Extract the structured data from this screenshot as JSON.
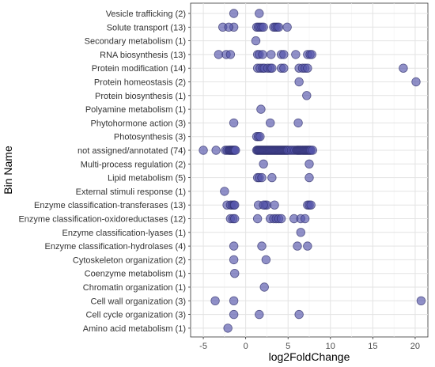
{
  "chart_data": {
    "type": "scatter",
    "title": "",
    "xlabel": "log2FoldChange",
    "ylabel": "Bin Name",
    "xlim": [
      -6.5,
      21.5
    ],
    "x_ticks": [
      -5,
      0,
      5,
      10,
      15,
      20
    ],
    "grid": true,
    "point_color": "#5555aa",
    "point_stroke": "#2b2b66",
    "point_opacity": 0.65,
    "categories": [
      "Vesicle trafficking (2)",
      "Solute transport (13)",
      "Secondary metabolism (1)",
      "RNA biosynthesis (13)",
      "Protein modification (14)",
      "Protein homeostasis (2)",
      "Protein biosynthesis (1)",
      "Polyamine metabolism (1)",
      "Phytohormone action (3)",
      "Photosynthesis (3)",
      "not assigned/annotated (74)",
      "Multi-process regulation (2)",
      "Lipid metabolism (5)",
      "External stimuli response (1)",
      "Enzyme classification-transferases (13)",
      "Enzyme classification-oxidoreductases (12)",
      "Enzyme classification-lyases (1)",
      "Enzyme classification-hydrolases (4)",
      "Cytoskeleton organization (2)",
      "Coenzyme metabolism (1)",
      "Chromatin organization (1)",
      "Cell wall organization (3)",
      "Cell cycle organization (3)",
      "Amino acid metabolism (1)"
    ],
    "points": {
      "Vesicle trafficking (2)": [
        -1.4,
        1.6
      ],
      "Solute transport (13)": [
        -2.7,
        -1.4,
        1.3,
        1.5,
        1.7,
        1.9,
        2.1,
        3.3,
        3.5,
        3.7,
        3.9,
        4.9,
        -2.0
      ],
      "Secondary metabolism (1)": [
        1.2
      ],
      "RNA biosynthesis (13)": [
        -3.2,
        -2.3,
        -1.8,
        1.4,
        1.6,
        2.0,
        3.0,
        4.2,
        4.5,
        5.9,
        7.3,
        7.6,
        7.8
      ],
      "Protein modification (14)": [
        1.4,
        1.7,
        2.0,
        2.2,
        2.6,
        2.9,
        3.1,
        4.2,
        4.5,
        6.3,
        6.7,
        7.0,
        7.3,
        18.6
      ],
      "Protein homeostasis (2)": [
        6.3,
        20.1
      ],
      "Protein biosynthesis (1)": [
        7.2
      ],
      "Polyamine metabolism (1)": [
        1.8
      ],
      "Phytohormone action (3)": [
        -1.4,
        2.9,
        6.2
      ],
      "Photosynthesis (3)": [
        1.3,
        1.5,
        1.7
      ],
      "not assigned/annotated (74)": [
        -5.0,
        -3.5,
        -2.4,
        -2.2,
        -2.0,
        -1.9,
        -1.8,
        -1.7,
        -1.6,
        -1.5,
        -1.4,
        -1.3,
        -1.2,
        1.3,
        1.4,
        1.5,
        1.6,
        1.7,
        1.8,
        1.9,
        2.0,
        2.1,
        2.2,
        2.3,
        2.4,
        2.5,
        2.6,
        2.7,
        2.8,
        2.9,
        3.0,
        3.1,
        3.2,
        3.3,
        3.4,
        3.5,
        3.6,
        3.7,
        3.8,
        3.9,
        4.0,
        4.1,
        4.2,
        4.3,
        4.4,
        4.5,
        4.6,
        4.7,
        4.8,
        4.9,
        5.0,
        5.2,
        5.4,
        5.6,
        5.8,
        6.0,
        6.1,
        6.2,
        6.3,
        6.4,
        6.5,
        6.6,
        6.7,
        6.8,
        6.9,
        7.0,
        7.1,
        7.2,
        7.3,
        7.4,
        7.5,
        7.6,
        7.7,
        7.9
      ],
      "Multi-process regulation (2)": [
        2.1,
        7.5
      ],
      "Lipid metabolism (5)": [
        1.4,
        1.6,
        1.9,
        3.1,
        7.5
      ],
      "External stimuli response (1)": [
        -2.5
      ],
      "Enzyme classification-transferases (13)": [
        -2.2,
        -1.8,
        -1.6,
        -1.4,
        1.5,
        2.3,
        2.5,
        3.4,
        7.3,
        7.5,
        7.7,
        2.1,
        -1.3
      ],
      "Enzyme classification-oxidoreductases (12)": [
        -1.8,
        -1.5,
        -1.3,
        1.4,
        2.9,
        3.3,
        3.6,
        3.9,
        4.2,
        5.7,
        6.5,
        7.0
      ],
      "Enzyme classification-lyases (1)": [
        6.5
      ],
      "Enzyme classification-hydrolases (4)": [
        -1.4,
        1.9,
        6.1,
        7.3
      ],
      "Cytoskeleton organization (2)": [
        -1.4,
        2.4
      ],
      "Coenzyme metabolism (1)": [
        -1.3
      ],
      "Chromatin organization (1)": [
        2.2
      ],
      "Cell wall organization (3)": [
        -3.6,
        -1.4,
        20.7
      ],
      "Cell cycle organization (3)": [
        -1.4,
        1.6,
        6.3
      ],
      "Amino acid metabolism (1)": [
        -2.1
      ]
    }
  }
}
